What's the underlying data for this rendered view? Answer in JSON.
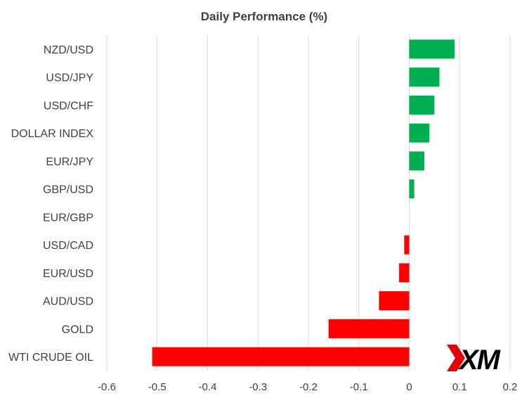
{
  "chart_data": {
    "type": "bar",
    "orientation": "horizontal",
    "title": "Daily Performance (%)",
    "xlabel": "",
    "ylabel": "",
    "categories": [
      "NZD/USD",
      "USD/JPY",
      "USD/CHF",
      "DOLLAR INDEX",
      "EUR/JPY",
      "GBP/USD",
      "EUR/GBP",
      "USD/CAD",
      "EUR/USD",
      "AUD/USD",
      "GOLD",
      "WTI CRUDE OIL"
    ],
    "values": [
      0.09,
      0.06,
      0.05,
      0.04,
      0.03,
      0.01,
      0.002,
      -0.01,
      -0.02,
      -0.06,
      -0.16,
      -0.51
    ],
    "xlim": [
      -0.6,
      0.2
    ],
    "xticks": [
      -0.6,
      -0.5,
      -0.4,
      -0.3,
      -0.2,
      -0.1,
      0,
      0.1,
      0.2
    ],
    "xtick_labels": [
      "-0.6",
      "-0.5",
      "-0.4",
      "-0.3",
      "-0.2",
      "-0.1",
      "0",
      "0.1",
      "0.2"
    ],
    "grid": "vertical",
    "legend": "none",
    "colors": {
      "positive": "#00b050",
      "negative": "#ff0000",
      "near_zero": "#f2f2f2",
      "grid": "#d9d9d9",
      "text": "#404040",
      "title": "#404040"
    }
  },
  "logo": {
    "text": "XM",
    "color": "#000000",
    "accent": "#e60000"
  }
}
